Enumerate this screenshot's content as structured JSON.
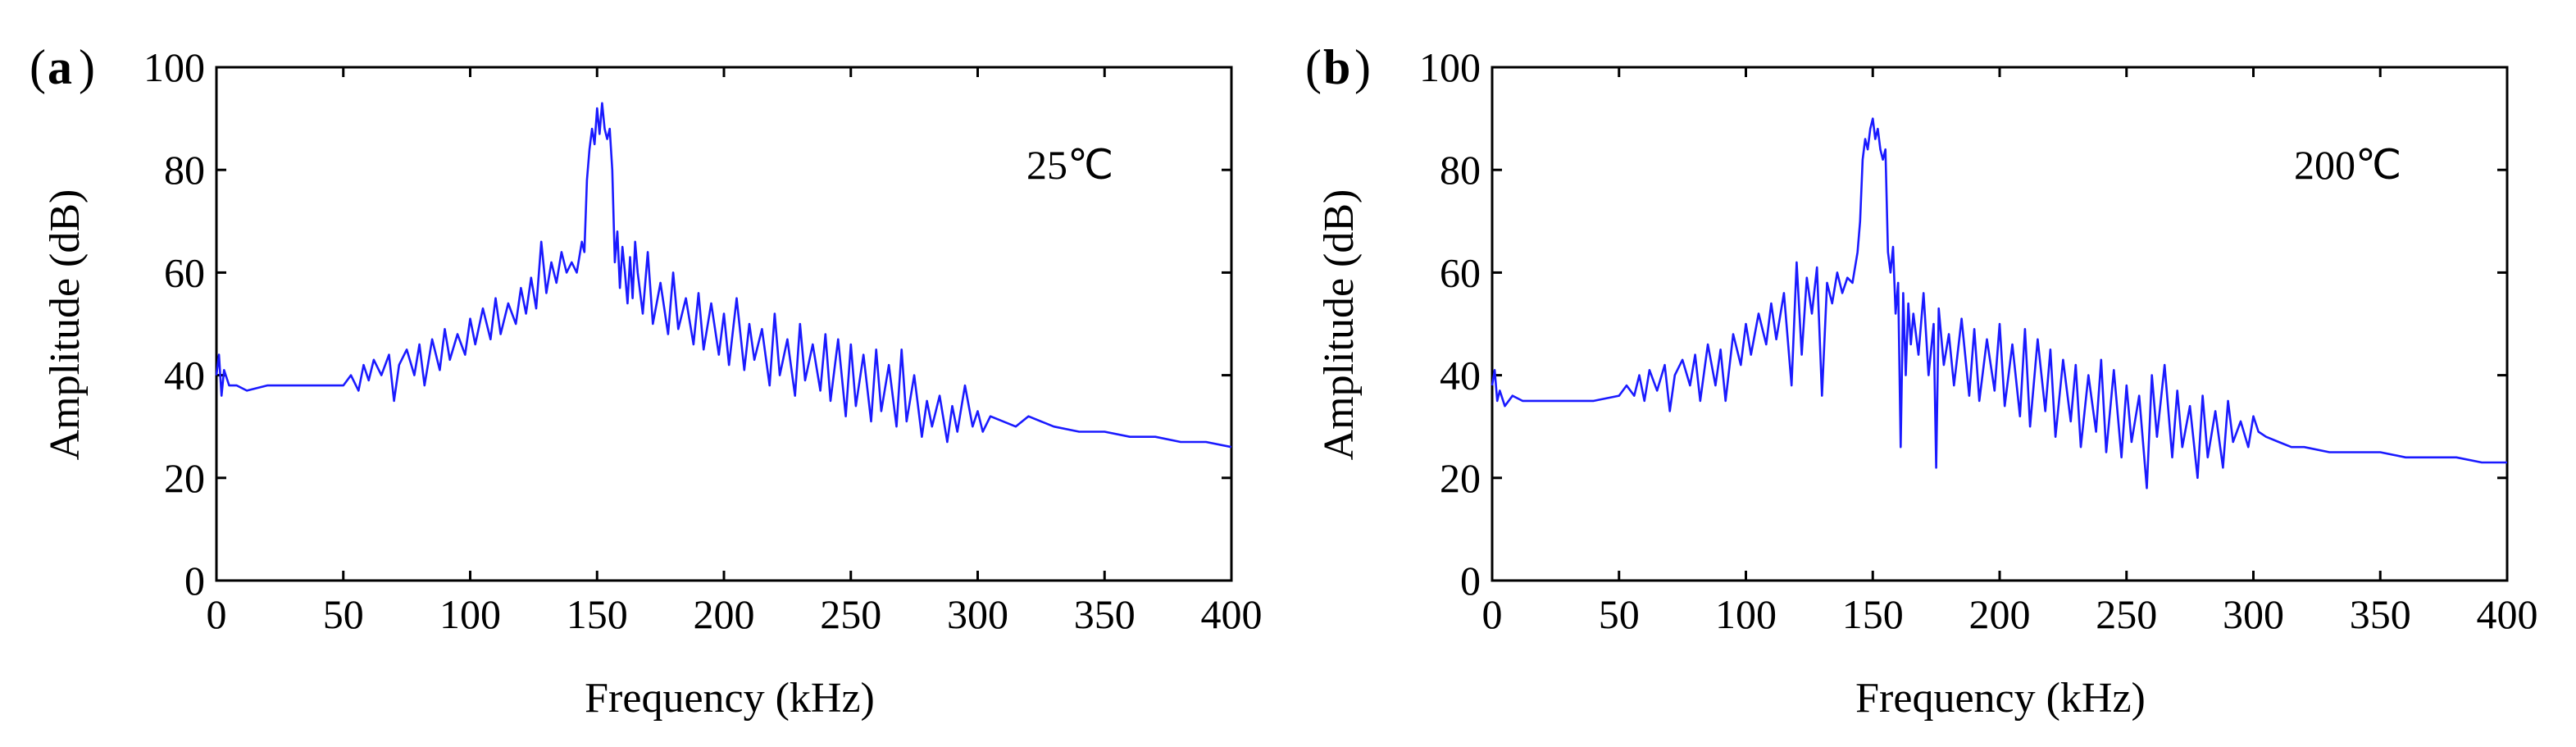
{
  "chart_data": [
    {
      "type": "line",
      "panel_label": "a",
      "annotation": "25℃",
      "xlabel": "Frequency (kHz)",
      "ylabel": "Amplitude (dB)",
      "xlim": [
        0,
        400
      ],
      "ylim": [
        0,
        100
      ],
      "x_ticks": [
        "0",
        "50",
        "100",
        "150",
        "200",
        "250",
        "300",
        "350",
        "400"
      ],
      "y_ticks": [
        "0",
        "20",
        "40",
        "60",
        "80",
        "100"
      ],
      "line_color": "#1a1aff",
      "series": [
        {
          "name": "25℃",
          "x": [
            0,
            1,
            2,
            3,
            5,
            8,
            12,
            20,
            30,
            40,
            50,
            53,
            56,
            58,
            60,
            62,
            65,
            68,
            70,
            72,
            75,
            78,
            80,
            82,
            85,
            88,
            90,
            92,
            95,
            98,
            100,
            102,
            105,
            108,
            110,
            112,
            115,
            118,
            120,
            122,
            124,
            126,
            128,
            130,
            132,
            134,
            136,
            138,
            140,
            142,
            144,
            145,
            146,
            147,
            148,
            149,
            150,
            151,
            152,
            153,
            154,
            155,
            156,
            157,
            158,
            159,
            160,
            161,
            162,
            163,
            164,
            165,
            166,
            168,
            170,
            172,
            175,
            178,
            180,
            182,
            185,
            188,
            190,
            192,
            195,
            198,
            200,
            202,
            205,
            208,
            210,
            212,
            215,
            218,
            220,
            222,
            225,
            228,
            230,
            232,
            235,
            238,
            240,
            242,
            245,
            248,
            250,
            252,
            255,
            258,
            260,
            262,
            265,
            268,
            270,
            272,
            275,
            278,
            280,
            282,
            285,
            288,
            290,
            292,
            295,
            298,
            300,
            302,
            305,
            310,
            315,
            320,
            330,
            340,
            350,
            360,
            370,
            380,
            390,
            400
          ],
          "y": [
            40,
            44,
            36,
            41,
            38,
            38,
            37,
            38,
            38,
            38,
            38,
            40,
            37,
            42,
            39,
            43,
            40,
            44,
            35,
            42,
            45,
            40,
            46,
            38,
            47,
            41,
            49,
            43,
            48,
            44,
            51,
            46,
            53,
            47,
            55,
            48,
            54,
            50,
            57,
            52,
            59,
            53,
            66,
            56,
            62,
            58,
            64,
            60,
            62,
            60,
            66,
            64,
            78,
            84,
            88,
            85,
            92,
            87,
            93,
            88,
            86,
            88,
            80,
            62,
            68,
            57,
            65,
            60,
            54,
            63,
            55,
            66,
            60,
            52,
            64,
            50,
            58,
            48,
            60,
            49,
            55,
            46,
            56,
            45,
            54,
            44,
            52,
            42,
            55,
            41,
            50,
            43,
            49,
            38,
            52,
            40,
            47,
            36,
            50,
            39,
            46,
            37,
            48,
            35,
            47,
            32,
            46,
            34,
            44,
            31,
            45,
            33,
            42,
            30,
            45,
            31,
            40,
            28,
            35,
            30,
            36,
            27,
            34,
            29,
            38,
            30,
            33,
            29,
            32,
            31,
            30,
            32,
            30,
            29,
            29,
            28,
            28,
            27,
            27,
            26
          ]
        }
      ]
    },
    {
      "type": "line",
      "panel_label": "b",
      "annotation": "200℃",
      "xlabel": "Frequency (kHz)",
      "ylabel": "Amplitude (dB)",
      "xlim": [
        0,
        400
      ],
      "ylim": [
        0,
        100
      ],
      "x_ticks": [
        "0",
        "50",
        "100",
        "150",
        "200",
        "250",
        "300",
        "350",
        "400"
      ],
      "y_ticks": [
        "0",
        "20",
        "40",
        "60",
        "80",
        "100"
      ],
      "line_color": "#1a1aff",
      "series": [
        {
          "name": "200℃",
          "x": [
            0,
            1,
            2,
            3,
            5,
            8,
            12,
            20,
            30,
            40,
            50,
            53,
            56,
            58,
            60,
            62,
            65,
            68,
            70,
            72,
            75,
            78,
            80,
            82,
            85,
            88,
            90,
            92,
            95,
            98,
            100,
            102,
            105,
            108,
            110,
            112,
            115,
            118,
            120,
            122,
            124,
            126,
            128,
            130,
            132,
            134,
            136,
            138,
            140,
            142,
            144,
            145,
            146,
            147,
            148,
            149,
            150,
            151,
            152,
            153,
            154,
            155,
            156,
            157,
            158,
            159,
            160,
            161,
            162,
            163,
            164,
            165,
            166,
            168,
            170,
            172,
            174,
            175,
            176,
            178,
            180,
            182,
            185,
            188,
            190,
            192,
            195,
            198,
            200,
            202,
            205,
            208,
            210,
            212,
            215,
            218,
            220,
            222,
            225,
            228,
            230,
            232,
            235,
            238,
            240,
            242,
            245,
            248,
            250,
            252,
            255,
            258,
            260,
            262,
            265,
            268,
            270,
            272,
            275,
            278,
            280,
            282,
            285,
            288,
            290,
            292,
            295,
            298,
            300,
            302,
            305,
            310,
            315,
            320,
            330,
            340,
            350,
            360,
            370,
            380,
            390,
            400
          ],
          "y": [
            38,
            41,
            35,
            37,
            34,
            36,
            35,
            35,
            35,
            35,
            36,
            38,
            36,
            40,
            35,
            41,
            37,
            42,
            33,
            40,
            43,
            38,
            44,
            35,
            46,
            38,
            45,
            35,
            48,
            42,
            50,
            44,
            52,
            46,
            54,
            47,
            56,
            38,
            62,
            44,
            59,
            52,
            61,
            36,
            58,
            54,
            60,
            56,
            59,
            58,
            64,
            70,
            82,
            86,
            84,
            88,
            90,
            86,
            88,
            84,
            82,
            84,
            64,
            60,
            65,
            52,
            58,
            26,
            56,
            40,
            54,
            46,
            52,
            44,
            56,
            40,
            50,
            22,
            53,
            42,
            48,
            38,
            51,
            36,
            49,
            35,
            47,
            37,
            50,
            34,
            46,
            32,
            49,
            30,
            47,
            33,
            45,
            28,
            43,
            31,
            42,
            26,
            40,
            29,
            43,
            25,
            41,
            24,
            38,
            27,
            36,
            18,
            40,
            28,
            42,
            24,
            37,
            26,
            34,
            20,
            36,
            24,
            33,
            22,
            35,
            27,
            31,
            26,
            32,
            29,
            28,
            27,
            26,
            26,
            25,
            25,
            25,
            24,
            24,
            24,
            23,
            23
          ]
        }
      ]
    }
  ]
}
